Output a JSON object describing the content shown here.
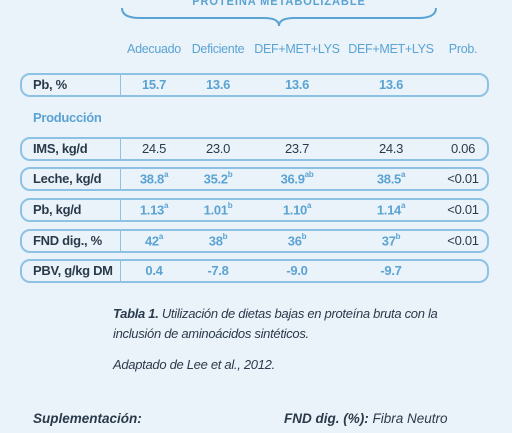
{
  "header": {
    "group_title": "PROTEÍNA METABOLIZABLE",
    "columns": [
      "Adecuado",
      "Deficiente",
      "DEF+MET+LYS",
      "DEF+MET+LYS",
      "Prob."
    ]
  },
  "rows": {
    "pb": {
      "label": "Pb, %",
      "values": [
        "15.7",
        "13.6",
        "13.6",
        "13.6",
        ""
      ]
    },
    "produccion": {
      "label": "Producción"
    },
    "ims": {
      "label": "IMS, kg/d",
      "values": [
        "24.5",
        "23.0",
        "23.7",
        "24.3",
        "0.06"
      ]
    },
    "leche": {
      "label": "Leche, kg/d",
      "values": [
        "38.8",
        "35.2",
        "36.9",
        "38.5",
        "<0.01"
      ],
      "sups": [
        "a",
        "b",
        "ab",
        "a",
        ""
      ]
    },
    "pbkg": {
      "label": "Pb, kg/d",
      "values": [
        "1.13",
        "1.01",
        "1.10",
        "1.14",
        "<0.01"
      ],
      "sups": [
        "a",
        "b",
        "a",
        "a",
        ""
      ]
    },
    "fnd": {
      "label": "FND dig., %",
      "values": [
        "42",
        "38",
        "36",
        "37",
        "<0.01"
      ],
      "sups": [
        "a",
        "b",
        "b",
        "b",
        ""
      ]
    },
    "pbv": {
      "label": "PBV, g/kg DM",
      "values": [
        "0.4",
        "-7.8",
        "-9.0",
        "-9.7",
        ""
      ]
    }
  },
  "caption": {
    "table_ref": "Tabla 1.",
    "text": "Utilización de dietas bajas en proteína bruta con la inclusión de aminoácidos sintéticos.",
    "source": "Adaptado de Lee et al., 2012."
  },
  "footer": {
    "left": "Suplementación:",
    "right_bold": "FND dig. (%):",
    "right_text": "Fibra Neutro"
  },
  "colors": {
    "accent": "#5aa3d3",
    "border": "#8ec2e4",
    "background": "#eaf3fa",
    "text": "#2b3a4a"
  }
}
